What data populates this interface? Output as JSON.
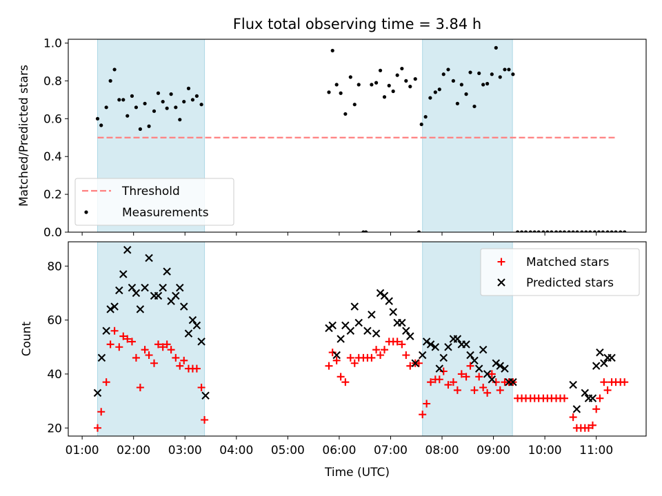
{
  "chart_data": [
    {
      "type": "scatter",
      "title": "Flux total observing time = 3.84 h",
      "ylabel": "Matched/Predicted stars",
      "xlabel": "",
      "x_unit": "hours UTC",
      "xlim": [
        0.73,
        11.97
      ],
      "ylim": [
        0,
        1.02
      ],
      "yticks": [
        0.0,
        0.2,
        0.4,
        0.6,
        0.8,
        1.0
      ],
      "ytick_labels": [
        "0.0",
        "0.2",
        "0.4",
        "0.6",
        "0.8",
        "1.0"
      ],
      "shaded_intervals": [
        [
          1.3,
          3.38
        ],
        [
          7.62,
          9.37
        ]
      ],
      "threshold": {
        "label": "Threshold",
        "value": 0.5,
        "x_range": [
          1.3,
          11.4
        ],
        "color": "#ff7f7f"
      },
      "legend": {
        "location": "lower-left",
        "entries": [
          "Threshold",
          "Measurements"
        ]
      },
      "series": [
        {
          "name": "Measurements",
          "color": "#000000",
          "x": [
            1.3,
            1.37,
            1.47,
            1.55,
            1.63,
            1.72,
            1.8,
            1.88,
            1.97,
            2.05,
            2.13,
            2.22,
            2.3,
            2.4,
            2.48,
            2.57,
            2.65,
            2.73,
            2.82,
            2.9,
            2.98,
            3.07,
            3.15,
            3.23,
            3.32,
            5.8,
            5.87,
            5.95,
            6.03,
            6.12,
            6.22,
            6.3,
            6.38,
            6.47,
            6.52,
            6.63,
            6.72,
            6.8,
            6.88,
            6.97,
            7.05,
            7.13,
            7.22,
            7.3,
            7.38,
            7.48,
            7.55,
            7.6,
            7.68,
            7.77,
            7.87,
            7.95,
            8.03,
            8.12,
            8.22,
            8.3,
            8.38,
            8.47,
            8.55,
            8.63,
            8.72,
            8.8,
            8.88,
            8.97,
            9.05,
            9.13,
            9.22,
            9.3,
            9.38,
            9.47,
            9.55,
            9.63,
            9.72,
            9.8,
            9.88,
            9.97,
            10.05,
            10.13,
            10.22,
            10.3,
            10.38,
            10.47,
            10.55,
            10.63,
            10.72,
            10.8,
            10.88,
            10.97,
            11.05,
            11.13,
            11.22,
            11.3,
            11.38,
            11.47,
            11.55
          ],
          "y": [
            0.6,
            0.565,
            0.66,
            0.8,
            0.86,
            0.7,
            0.7,
            0.615,
            0.72,
            0.66,
            0.545,
            0.68,
            0.56,
            0.64,
            0.735,
            0.69,
            0.655,
            0.73,
            0.66,
            0.595,
            0.69,
            0.76,
            0.7,
            0.72,
            0.675,
            0.74,
            0.96,
            0.78,
            0.735,
            0.625,
            0.82,
            0.675,
            0.78,
            0.0,
            0.0,
            0.78,
            0.79,
            0.855,
            0.715,
            0.775,
            0.745,
            0.83,
            0.865,
            0.8,
            0.77,
            0.81,
            0.0,
            0.57,
            0.61,
            0.71,
            0.74,
            0.755,
            0.835,
            0.86,
            0.8,
            0.68,
            0.78,
            0.73,
            0.845,
            0.665,
            0.84,
            0.78,
            0.785,
            0.835,
            0.975,
            0.82,
            0.86,
            0.86,
            0.835,
            0.0,
            0.0,
            0.0,
            0.0,
            0.0,
            0.0,
            0.0,
            0.0,
            0.0,
            0.0,
            0.0,
            0.0,
            0.0,
            0.0,
            0.0,
            0.0,
            0.0,
            0.0,
            0.0,
            0.0,
            0.0,
            0.0,
            0.0,
            0.0,
            0.0,
            0.0
          ]
        }
      ]
    },
    {
      "type": "scatter",
      "title": "",
      "ylabel": "Count",
      "xlabel": "Time (UTC)",
      "x_unit": "hours UTC",
      "xlim": [
        0.73,
        11.97
      ],
      "ylim": [
        17,
        89
      ],
      "yticks": [
        20,
        40,
        60,
        80
      ],
      "ytick_labels": [
        "20",
        "40",
        "60",
        "80"
      ],
      "xticks": [
        1,
        2,
        3,
        4,
        5,
        6,
        7,
        8,
        9,
        10,
        11
      ],
      "xtick_labels": [
        "01:00",
        "02:00",
        "03:00",
        "04:00",
        "05:00",
        "06:00",
        "07:00",
        "08:00",
        "09:00",
        "10:00",
        "11:00"
      ],
      "shaded_intervals": [
        [
          1.3,
          3.38
        ],
        [
          7.62,
          9.37
        ]
      ],
      "legend": {
        "location": "top-right",
        "entries": [
          "Matched stars",
          "Predicted stars"
        ]
      },
      "series": [
        {
          "name": "Matched stars",
          "marker": "plus",
          "color": "#ff0000",
          "x": [
            1.3,
            1.37,
            1.47,
            1.55,
            1.63,
            1.72,
            1.8,
            1.88,
            1.97,
            2.05,
            2.13,
            2.22,
            2.3,
            2.4,
            2.48,
            2.57,
            2.65,
            2.73,
            2.82,
            2.9,
            2.98,
            3.07,
            3.15,
            3.23,
            3.32,
            3.38,
            5.8,
            5.87,
            5.95,
            6.03,
            6.12,
            6.22,
            6.3,
            6.38,
            6.47,
            6.55,
            6.63,
            6.72,
            6.8,
            6.88,
            6.97,
            7.05,
            7.13,
            7.22,
            7.3,
            7.38,
            7.48,
            7.55,
            7.62,
            7.7,
            7.78,
            7.87,
            7.95,
            8.03,
            8.12,
            8.22,
            8.3,
            8.38,
            8.47,
            8.55,
            8.63,
            8.72,
            8.8,
            8.88,
            8.97,
            9.05,
            9.13,
            9.22,
            9.3,
            9.38,
            9.47,
            9.55,
            9.63,
            9.72,
            9.8,
            9.88,
            9.97,
            10.05,
            10.13,
            10.22,
            10.3,
            10.38,
            10.55,
            10.62,
            10.7,
            10.78,
            10.85,
            10.93,
            11.0,
            11.07,
            11.15,
            11.22,
            11.3,
            11.38,
            11.47,
            11.55
          ],
          "y": [
            20,
            26,
            37,
            51,
            56,
            50,
            54,
            53,
            52,
            46,
            35,
            49,
            47,
            44,
            51,
            50,
            51,
            49,
            46,
            43,
            45,
            42,
            42,
            42,
            35,
            23,
            43,
            48,
            45,
            39,
            37,
            46,
            44,
            46,
            46,
            46,
            46,
            49,
            47,
            49,
            52,
            52,
            52,
            51,
            47,
            43,
            44,
            44,
            25,
            29,
            37,
            38,
            38,
            41,
            36,
            37,
            34,
            40,
            39,
            43,
            34,
            39,
            35,
            33,
            40,
            37,
            34,
            37,
            37,
            37,
            31,
            31,
            31,
            31,
            31,
            31,
            31,
            31,
            31,
            31,
            31,
            31,
            24,
            20,
            20,
            20,
            20,
            21,
            27,
            31,
            37,
            34,
            37,
            37,
            37,
            37
          ]
        },
        {
          "name": "Predicted stars",
          "marker": "x",
          "color": "#000000",
          "x": [
            1.3,
            1.38,
            1.47,
            1.55,
            1.63,
            1.72,
            1.8,
            1.88,
            1.97,
            2.05,
            2.13,
            2.22,
            2.3,
            2.4,
            2.48,
            2.57,
            2.65,
            2.73,
            2.82,
            2.9,
            2.98,
            3.07,
            3.15,
            3.23,
            3.32,
            3.4,
            5.8,
            5.87,
            5.95,
            6.03,
            6.12,
            6.22,
            6.3,
            6.38,
            6.55,
            6.63,
            6.72,
            6.8,
            6.88,
            6.97,
            7.05,
            7.13,
            7.22,
            7.3,
            7.38,
            7.48,
            7.62,
            7.7,
            7.78,
            7.87,
            7.95,
            8.03,
            8.12,
            8.22,
            8.3,
            8.38,
            8.47,
            8.55,
            8.63,
            8.72,
            8.8,
            8.88,
            8.97,
            9.05,
            9.13,
            9.22,
            9.3,
            9.38,
            10.55,
            10.62,
            10.78,
            10.85,
            10.93,
            11.0,
            11.07,
            11.15,
            11.22,
            11.3
          ],
          "y": [
            33,
            46,
            56,
            64,
            65,
            71,
            77,
            86,
            72,
            70,
            64,
            72,
            83,
            69,
            69,
            72,
            78,
            67,
            69,
            72,
            65,
            55,
            60,
            58,
            52,
            32,
            57,
            58,
            47,
            53,
            58,
            56,
            65,
            59,
            56,
            62,
            55,
            70,
            69,
            67,
            63,
            59,
            59,
            56,
            54,
            44,
            47,
            52,
            51,
            50,
            42,
            46,
            50,
            53,
            53,
            51,
            51,
            47,
            45,
            42,
            49,
            40,
            38,
            44,
            43,
            42,
            37,
            37,
            36,
            27,
            33,
            31,
            31,
            43,
            48,
            44,
            46,
            46
          ]
        }
      ]
    }
  ]
}
